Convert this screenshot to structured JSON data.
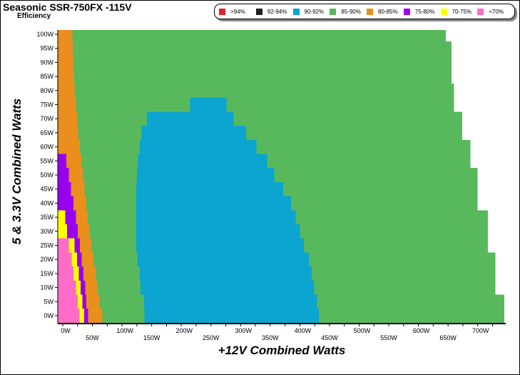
{
  "title": "Seasonic SSR-750FX -115V",
  "subtitle": "Efficiency",
  "legend": [
    {
      "label": ">94%",
      "color": "#e0202a",
      "key": "r"
    },
    {
      "label": "92-94%",
      "color": "#222222",
      "key": "k"
    },
    {
      "label": "90-92%",
      "color": "#0ca4d0",
      "key": "b"
    },
    {
      "label": "85-90%",
      "color": "#58b85c",
      "key": "g"
    },
    {
      "label": "80-85%",
      "color": "#ea8e1e",
      "key": "o"
    },
    {
      "label": "75-80%",
      "color": "#9a00f0",
      "key": "p"
    },
    {
      "label": "70-75%",
      "color": "#ffff00",
      "key": "y"
    },
    {
      "label": "<70%",
      "color": "#ff6cc8",
      "key": "m"
    }
  ],
  "chart_data": {
    "type": "heatmap",
    "title": "Seasonic SSR-750FX -115V",
    "subtitle": "Efficiency",
    "xlabel": "+12V Combined Watts",
    "ylabel": "5 & 3.3V Combined Watts",
    "xlim": [
      -8,
      745
    ],
    "ylim": [
      -3,
      102
    ],
    "xticks": [
      "0W",
      "50W",
      "100W",
      "150W",
      "200W",
      "250W",
      "300W",
      "350W",
      "400W",
      "450W",
      "500W",
      "550W",
      "600W",
      "650W",
      "700W"
    ],
    "xtick_values": [
      0,
      50,
      100,
      150,
      200,
      250,
      300,
      350,
      400,
      450,
      500,
      550,
      600,
      650,
      700
    ],
    "yticks": [
      "0W",
      "5W",
      "10W",
      "15W",
      "20W",
      "25W",
      "30W",
      "35W",
      "40W",
      "45W",
      "50W",
      "55W",
      "60W",
      "65W",
      "70W",
      "75W",
      "80W",
      "85W",
      "90W",
      "95W",
      "100W"
    ],
    "ytick_values": [
      0,
      5,
      10,
      15,
      20,
      25,
      30,
      35,
      40,
      45,
      50,
      55,
      60,
      65,
      70,
      75,
      80,
      85,
      90,
      95,
      100
    ],
    "row_step": 5,
    "rows": [
      {
        "y": 0,
        "segments": [
          [
            "m",
            28
          ],
          [
            "y",
            36
          ],
          [
            "p",
            43
          ],
          [
            "o",
            67
          ],
          [
            "g",
            138
          ],
          [
            "b",
            432
          ],
          [
            "g",
            745
          ]
        ]
      },
      {
        "y": 5,
        "segments": [
          [
            "m",
            25
          ],
          [
            "y",
            33
          ],
          [
            "p",
            40
          ],
          [
            "o",
            62
          ],
          [
            "g",
            137
          ],
          [
            "b",
            429
          ],
          [
            "g",
            745
          ]
        ]
      },
      {
        "y": 10,
        "segments": [
          [
            "m",
            22
          ],
          [
            "y",
            30
          ],
          [
            "p",
            38
          ],
          [
            "o",
            59
          ],
          [
            "g",
            131
          ],
          [
            "b",
            424
          ],
          [
            "g",
            730
          ]
        ]
      },
      {
        "y": 15,
        "segments": [
          [
            "m",
            18
          ],
          [
            "y",
            27
          ],
          [
            "p",
            35
          ],
          [
            "o",
            56
          ],
          [
            "g",
            130
          ],
          [
            "b",
            420
          ],
          [
            "g",
            730
          ]
        ]
      },
      {
        "y": 20,
        "segments": [
          [
            "m",
            15
          ],
          [
            "y",
            24
          ],
          [
            "p",
            32
          ],
          [
            "o",
            52
          ],
          [
            "g",
            126
          ],
          [
            "b",
            415
          ],
          [
            "g",
            730
          ]
        ]
      },
      {
        "y": 25,
        "segments": [
          [
            "m",
            10
          ],
          [
            "y",
            20
          ],
          [
            "p",
            29
          ],
          [
            "o",
            49
          ],
          [
            "g",
            124
          ],
          [
            "b",
            407
          ],
          [
            "g",
            717
          ]
        ]
      },
      {
        "y": 30,
        "segments": [
          [
            "y",
            7
          ],
          [
            "p",
            25
          ],
          [
            "o",
            45
          ],
          [
            "g",
            124
          ],
          [
            "b",
            400
          ],
          [
            "g",
            717
          ]
        ]
      },
      {
        "y": 35,
        "segments": [
          [
            "y",
            4
          ],
          [
            "p",
            22
          ],
          [
            "o",
            42
          ],
          [
            "g",
            124
          ],
          [
            "b",
            393
          ],
          [
            "g",
            717
          ]
        ]
      },
      {
        "y": 40,
        "segments": [
          [
            "p",
            18
          ],
          [
            "o",
            40
          ],
          [
            "g",
            124
          ],
          [
            "b",
            385
          ],
          [
            "g",
            700
          ]
        ]
      },
      {
        "y": 45,
        "segments": [
          [
            "p",
            14
          ],
          [
            "o",
            37
          ],
          [
            "g",
            124
          ],
          [
            "b",
            372
          ],
          [
            "g",
            700
          ]
        ]
      },
      {
        "y": 50,
        "segments": [
          [
            "p",
            10
          ],
          [
            "o",
            34
          ],
          [
            "g",
            125
          ],
          [
            "b",
            357
          ],
          [
            "g",
            700
          ]
        ]
      },
      {
        "y": 55,
        "segments": [
          [
            "p",
            6
          ],
          [
            "o",
            31
          ],
          [
            "g",
            127
          ],
          [
            "b",
            345
          ],
          [
            "g",
            688
          ]
        ]
      },
      {
        "y": 60,
        "segments": [
          [
            "o",
            29
          ],
          [
            "g",
            130
          ],
          [
            "b",
            327
          ],
          [
            "g",
            688
          ]
        ]
      },
      {
        "y": 65,
        "segments": [
          [
            "o",
            26
          ],
          [
            "g",
            133
          ],
          [
            "b",
            309
          ],
          [
            "g",
            674
          ]
        ]
      },
      {
        "y": 70,
        "segments": [
          [
            "o",
            24
          ],
          [
            "g",
            142
          ],
          [
            "b",
            288
          ],
          [
            "g",
            674
          ]
        ]
      },
      {
        "y": 75,
        "segments": [
          [
            "o",
            22
          ],
          [
            "g",
            215
          ],
          [
            "b",
            276
          ],
          [
            "g",
            660
          ]
        ]
      },
      {
        "y": 80,
        "segments": [
          [
            "o",
            20
          ],
          [
            "g",
            660
          ]
        ]
      },
      {
        "y": 85,
        "segments": [
          [
            "o",
            19
          ],
          [
            "g",
            656
          ]
        ]
      },
      {
        "y": 90,
        "segments": [
          [
            "o",
            18
          ],
          [
            "g",
            656
          ]
        ]
      },
      {
        "y": 95,
        "segments": [
          [
            "o",
            17
          ],
          [
            "g",
            656
          ]
        ]
      },
      {
        "y": 100,
        "segments": [
          [
            "o",
            16
          ],
          [
            "g",
            646
          ]
        ]
      }
    ]
  }
}
